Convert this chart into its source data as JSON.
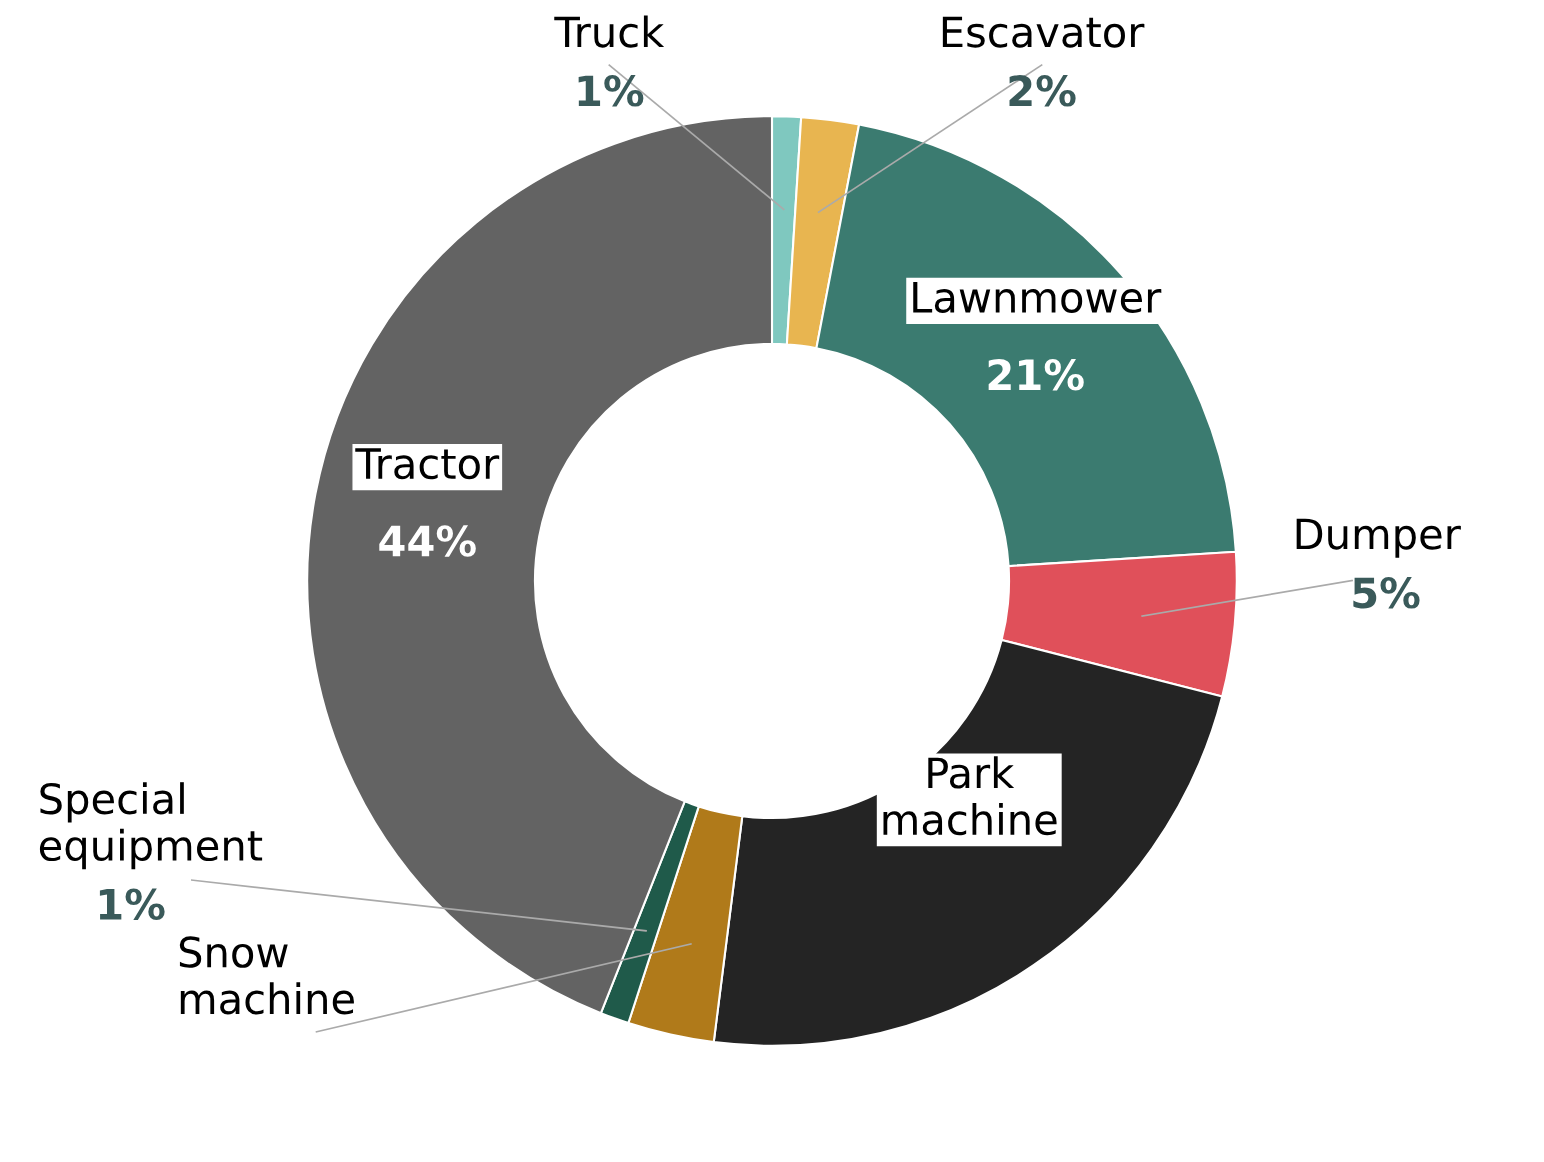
{
  "chart_data": {
    "type": "donut",
    "categories": [
      "Truck",
      "Escavator",
      "Lawnmower",
      "Dumper",
      "Park machine",
      "Snow machine",
      "Special equipment",
      "Tractor"
    ],
    "values": [
      1,
      2,
      21,
      5,
      23,
      3,
      1,
      44
    ],
    "value_labels": [
      "1%",
      "2%",
      "21%",
      "5%",
      null,
      null,
      "1%",
      "44%"
    ],
    "colors": [
      "#7fc8bf",
      "#e8b550",
      "#3b7b70",
      "#e0505a",
      "#242424",
      "#b07a1a",
      "#1f5a4a",
      "#636363"
    ],
    "legend": false
  }
}
